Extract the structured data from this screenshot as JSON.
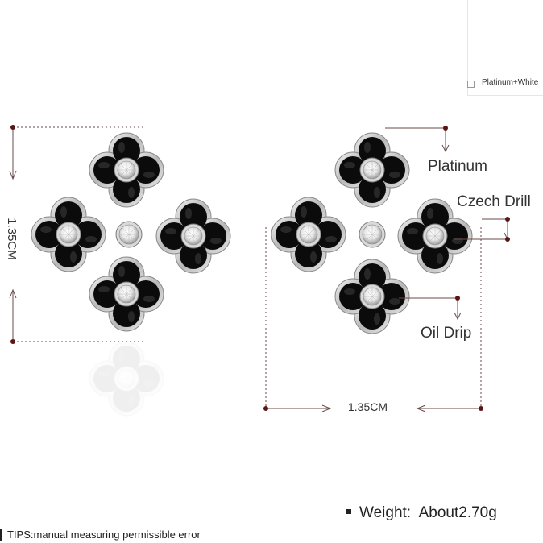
{
  "variant": {
    "option_label": "Platinum+White",
    "selected": false
  },
  "callouts": {
    "material": "Platinum",
    "stone": "Czech Drill",
    "finish": "Oil Drip"
  },
  "dimensions": {
    "height": "1.35CM",
    "width": "1.35CM"
  },
  "weight": {
    "label": "Weight:",
    "value": "About2.70g"
  },
  "tips": {
    "text": "TIPS:manual measuring permissible error"
  },
  "colors": {
    "metal": "#c9c9c9",
    "enamel": "#0a0a0a",
    "dimension_line": "#5a1616",
    "text": "#333333"
  },
  "icons": {
    "product_image": "clover-earrings-image",
    "thumbnail": "earring-pair-thumbnail"
  }
}
